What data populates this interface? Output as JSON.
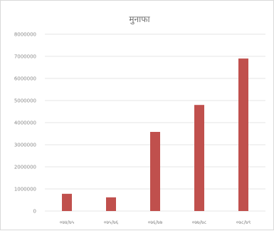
{
  "chart_data": {
    "type": "bar",
    "title": "मुनाफा",
    "categories": [
      "०७४/७५",
      "०७५/७६",
      "०७६/७७",
      "०७७/७८",
      "०७८/७९"
    ],
    "values": [
      780000,
      620000,
      3580000,
      4800000,
      6900000
    ],
    "ylim": [
      0,
      8000000
    ],
    "yticks": [
      {
        "value": 0,
        "label": "0"
      },
      {
        "value": 1000000,
        "label": "1000000"
      },
      {
        "value": 2000000,
        "label": "2000000"
      },
      {
        "value": 3000000,
        "label": "3000000"
      },
      {
        "value": 4000000,
        "label": "4000000"
      },
      {
        "value": 5000000,
        "label": "5000000"
      },
      {
        "value": 6000000,
        "label": "6000000"
      },
      {
        "value": 7000000,
        "label": "7000000"
      },
      {
        "value": 8000000,
        "label": "8000000"
      }
    ],
    "grid": true,
    "legend": "none",
    "bar_color": "#c0504d"
  }
}
